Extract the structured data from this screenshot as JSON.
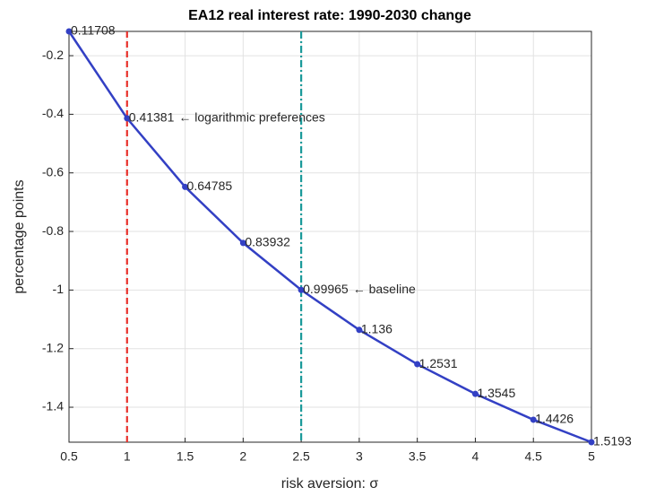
{
  "chart_data": {
    "type": "line",
    "title": "EA12 real interest rate: 1990-2030 change",
    "xlabel": "risk aversion: σ",
    "ylabel": "percentage points",
    "x": [
      0.5,
      1,
      1.5,
      2,
      2.5,
      3,
      3.5,
      4,
      4.5,
      5
    ],
    "series": [
      {
        "color": "#3340c4",
        "values": [
          -0.11708,
          -0.41381,
          -0.64785,
          -0.83932,
          -0.99965,
          -1.136,
          -1.2531,
          -1.3545,
          -1.4426,
          -1.5193
        ],
        "value_labels": [
          "0.11708",
          "0.41381",
          "0.64785",
          "0.83932",
          "0.99965",
          "1.136",
          "1.2531",
          "1.3545",
          "1.4426",
          "1.5193"
        ]
      }
    ],
    "vlines": [
      {
        "x": 1,
        "color": "#e8302a",
        "style": "dashed"
      },
      {
        "x": 2.5,
        "color": "#1a9a9a",
        "style": "dashdot"
      }
    ],
    "annotations": [
      {
        "x": 1,
        "y": -0.41381,
        "text": "← logarithmic preferences"
      },
      {
        "x": 2.5,
        "y": -0.99965,
        "text": "← baseline"
      }
    ],
    "xlim": [
      0.5,
      5
    ],
    "ylim": [
      -1.5193,
      -0.11708
    ],
    "xticks": [
      0.5,
      1,
      1.5,
      2,
      2.5,
      3,
      3.5,
      4,
      4.5,
      5
    ],
    "yticks": [
      -1.4,
      -1.2,
      -1,
      -0.8,
      -0.6,
      -0.4,
      -0.2
    ],
    "grid": true
  }
}
